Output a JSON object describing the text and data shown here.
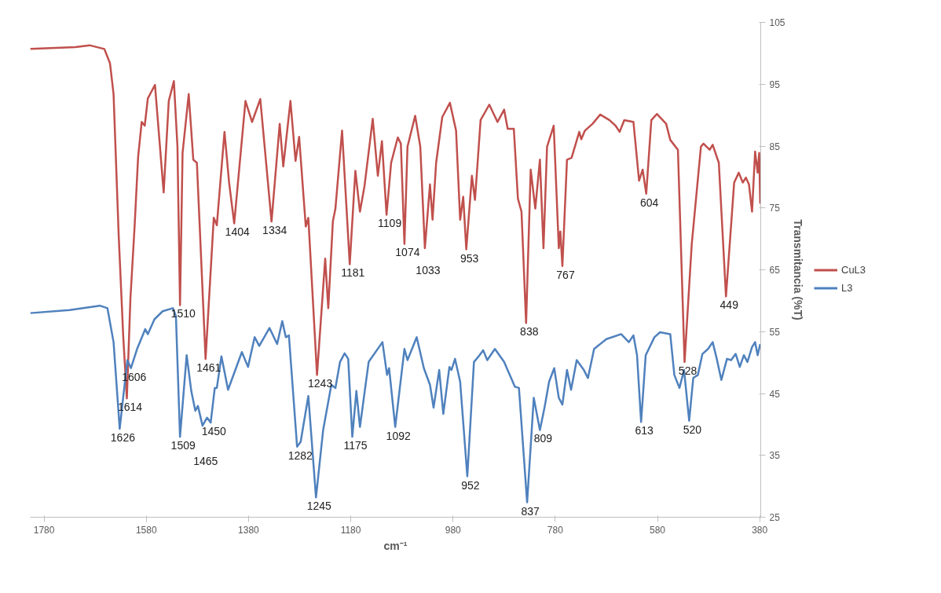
{
  "chart_data": {
    "type": "line",
    "xlabel": "cm⁻¹",
    "ylabel": "Transmitancia (%T)",
    "xlim": [
      1807,
      378
    ],
    "xticks": [
      1780,
      1580,
      1380,
      1180,
      980,
      780,
      580,
      380
    ],
    "ylim": [
      25,
      105
    ],
    "yticks": [
      25,
      35,
      45,
      55,
      65,
      75,
      85,
      95,
      105
    ],
    "grid": false,
    "legend": "right",
    "series": [
      {
        "name": "CuL3",
        "color": "#c0504d",
        "x": [
          1807,
          1719,
          1691,
          1662,
          1651,
          1644,
          1634,
          1625,
          1618,
          1611,
          1603,
          1596,
          1589,
          1583,
          1577,
          1563,
          1546,
          1536,
          1526,
          1519,
          1514,
          1509,
          1497,
          1488,
          1481,
          1464,
          1448,
          1442,
          1427,
          1418,
          1408,
          1386,
          1373,
          1357,
          1335,
          1319,
          1312,
          1298,
          1288,
          1281,
          1268,
          1263,
          1246,
          1230,
          1224,
          1215,
          1210,
          1197,
          1182,
          1171,
          1162,
          1153,
          1137,
          1127,
          1119,
          1110,
          1101,
          1088,
          1082,
          1075,
          1069,
          1054,
          1044,
          1035,
          1025,
          1020,
          1013,
          1001,
          986,
          974,
          966,
          960,
          954,
          943,
          937,
          926,
          909,
          893,
          880,
          873,
          861,
          853,
          846,
          837,
          828,
          819,
          810,
          803,
          796,
          783,
          773,
          770,
          766,
          757,
          748,
          733,
          729,
          722,
          707,
          692,
          674,
          662,
          654,
          645,
          627,
          616,
          609,
          602,
          592,
          581,
          563,
          555,
          540,
          527,
          513,
          495,
          490,
          478,
          472,
          460,
          446,
          430,
          421,
          413,
          407,
          401,
          395,
          389,
          384,
          381,
          379
        ],
        "values": [
          100.7,
          101.0,
          101.3,
          100.7,
          98.4,
          93.4,
          70.6,
          54.1,
          44.2,
          60.4,
          71.8,
          83.2,
          88.9,
          88.3,
          92.7,
          94.9,
          77.5,
          92.3,
          95.5,
          84.9,
          59.3,
          83.9,
          93.4,
          82.8,
          82.3,
          50.6,
          73.4,
          72.2,
          87.3,
          79.1,
          72.5,
          92.3,
          88.9,
          92.6,
          72.8,
          88.6,
          81.7,
          92.3,
          82.6,
          86.5,
          72.0,
          73.4,
          48.0,
          66.8,
          58.8,
          72.8,
          74.9,
          87.5,
          65.9,
          81.0,
          74.4,
          78.6,
          89.4,
          80.2,
          85.8,
          73.9,
          82.3,
          86.4,
          85.4,
          69.2,
          84.9,
          89.9,
          84.9,
          68.5,
          78.8,
          73.1,
          82.3,
          89.7,
          92.0,
          87.5,
          73.1,
          76.8,
          68.3,
          80.2,
          76.3,
          89.2,
          91.7,
          88.9,
          90.9,
          87.8,
          87.8,
          76.5,
          74.4,
          56.4,
          81.2,
          74.9,
          82.8,
          68.5,
          84.9,
          88.3,
          68.5,
          71.2,
          65.6,
          82.8,
          83.1,
          87.3,
          86.1,
          87.5,
          88.6,
          90.1,
          89.2,
          88.3,
          87.3,
          89.2,
          88.9,
          79.4,
          81.2,
          77.3,
          89.2,
          90.2,
          88.6,
          86.0,
          84.4,
          50.1,
          69.1,
          84.9,
          85.4,
          84.4,
          85.2,
          82.3,
          60.7,
          79.1,
          80.7,
          79.1,
          79.9,
          78.8,
          74.4,
          84.1,
          80.7,
          83.9,
          75.7
        ]
      },
      {
        "name": "L3",
        "color": "#4f81bd",
        "x": [
          1807,
          1730,
          1671,
          1656,
          1644,
          1632,
          1617,
          1610,
          1598,
          1582,
          1577,
          1564,
          1548,
          1528,
          1522,
          1514,
          1501,
          1492,
          1484,
          1479,
          1470,
          1461,
          1454,
          1446,
          1442,
          1433,
          1420,
          1393,
          1381,
          1368,
          1359,
          1339,
          1324,
          1314,
          1307,
          1301,
          1285,
          1278,
          1263,
          1248,
          1234,
          1218,
          1210,
          1201,
          1192,
          1185,
          1177,
          1169,
          1162,
          1145,
          1118,
          1109,
          1105,
          1093,
          1075,
          1069,
          1051,
          1037,
          1025,
          1018,
          1007,
          999,
          987,
          983,
          976,
          966,
          952,
          939,
          928,
          921,
          913,
          898,
          880,
          859,
          851,
          835,
          822,
          810,
          801,
          792,
          782,
          773,
          766,
          757,
          749,
          738,
          724,
          716,
          704,
          680,
          651,
          636,
          627,
          620,
          612,
          603,
          586,
          575,
          555,
          547,
          537,
          528,
          518,
          510,
          501,
          492,
          481,
          472,
          464,
          455,
          444,
          436,
          427,
          419,
          411,
          404,
          395,
          389,
          384,
          379
        ],
        "values": [
          58.0,
          58.5,
          59.2,
          58.8,
          53.3,
          39.3,
          50.4,
          49.1,
          52.2,
          55.4,
          54.6,
          57.0,
          58.3,
          58.8,
          57.5,
          38.0,
          51.2,
          45.4,
          42.2,
          43.0,
          39.8,
          41.1,
          40.3,
          45.9,
          45.9,
          51.0,
          45.6,
          51.7,
          49.3,
          54.1,
          52.7,
          55.6,
          53.0,
          56.7,
          54.1,
          54.4,
          36.4,
          37.2,
          44.6,
          28.2,
          39.1,
          46.4,
          45.9,
          50.1,
          51.5,
          50.6,
          38.0,
          45.4,
          39.6,
          50.1,
          53.3,
          48.0,
          49.1,
          39.6,
          52.2,
          50.4,
          54.1,
          49.1,
          46.4,
          42.7,
          48.8,
          41.7,
          49.3,
          48.8,
          50.6,
          46.9,
          31.6,
          50.1,
          51.2,
          52.0,
          50.4,
          52.2,
          50.1,
          46.1,
          45.9,
          27.4,
          44.3,
          39.1,
          42.7,
          46.9,
          49.1,
          44.3,
          43.2,
          48.8,
          45.6,
          50.4,
          48.8,
          47.5,
          52.2,
          53.8,
          54.6,
          53.3,
          54.4,
          51.2,
          40.4,
          51.2,
          54.1,
          54.9,
          54.6,
          48.0,
          45.9,
          48.8,
          40.6,
          47.5,
          48.0,
          51.4,
          52.2,
          53.3,
          50.6,
          47.2,
          50.6,
          50.4,
          51.4,
          49.3,
          51.2,
          50.1,
          52.5,
          53.3,
          51.2,
          53.0
        ]
      }
    ],
    "annotations": [
      {
        "text": "1614",
        "x": 1618,
        "y": 44.2
      },
      {
        "text": "1606",
        "x": 1610,
        "y": 49.1
      },
      {
        "text": "1626",
        "x": 1632,
        "y": 39.3
      },
      {
        "text": "1510",
        "x": 1514,
        "y": 59.3
      },
      {
        "text": "1509",
        "x": 1514,
        "y": 38.0
      },
      {
        "text": "1465",
        "x": 1470,
        "y": 39.8
      },
      {
        "text": "1450",
        "x": 1454,
        "y": 40.3
      },
      {
        "text": "1461",
        "x": 1464,
        "y": 50.6
      },
      {
        "text": "1404",
        "x": 1408,
        "y": 72.5
      },
      {
        "text": "1334",
        "x": 1335,
        "y": 72.8
      },
      {
        "text": "1282",
        "x": 1285,
        "y": 36.4
      },
      {
        "text": "1243",
        "x": 1246,
        "y": 48.0
      },
      {
        "text": "1245",
        "x": 1248,
        "y": 28.2
      },
      {
        "text": "1181",
        "x": 1182,
        "y": 65.9
      },
      {
        "text": "1175",
        "x": 1177,
        "y": 38.0
      },
      {
        "text": "1109",
        "x": 1110,
        "y": 73.9
      },
      {
        "text": "1074",
        "x": 1075,
        "y": 69.2
      },
      {
        "text": "1033",
        "x": 1035,
        "y": 68.5
      },
      {
        "text": "1092",
        "x": 1093,
        "y": 39.6
      },
      {
        "text": "953",
        "x": 954,
        "y": 68.3
      },
      {
        "text": "952",
        "x": 952,
        "y": 31.6
      },
      {
        "text": "838",
        "x": 837,
        "y": 56.4
      },
      {
        "text": "837",
        "x": 835,
        "y": 27.4
      },
      {
        "text": "809",
        "x": 810,
        "y": 39.1
      },
      {
        "text": "767",
        "x": 766,
        "y": 65.6
      },
      {
        "text": "604",
        "x": 602,
        "y": 77.3
      },
      {
        "text": "613",
        "x": 612,
        "y": 40.4
      },
      {
        "text": "528",
        "x": 527,
        "y": 50.1
      },
      {
        "text": "520",
        "x": 518,
        "y": 40.6
      },
      {
        "text": "449",
        "x": 446,
        "y": 60.7
      }
    ]
  }
}
